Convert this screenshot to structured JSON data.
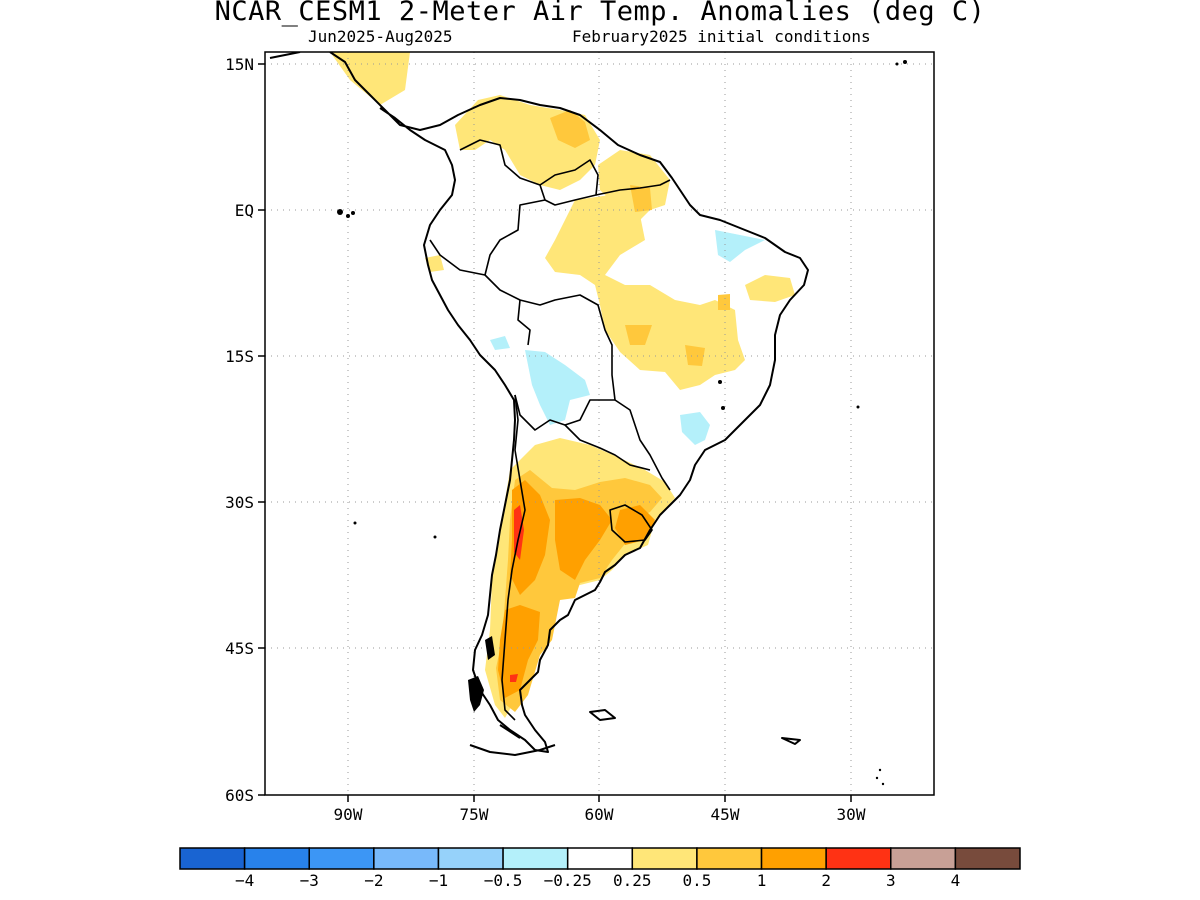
{
  "title": "NCAR_CESM1 2-Meter Air Temp. Anomalies (deg C)",
  "subtitle_left": "Jun2025-Aug2025",
  "subtitle_right": "February2025 initial conditions",
  "lat_labels": [
    "15N",
    "EQ",
    "15S",
    "30S",
    "45S",
    "60S"
  ],
  "lon_labels": [
    "90W",
    "75W",
    "60W",
    "45W",
    "30W"
  ],
  "colorbar": {
    "colors": [
      "#1964d2",
      "#2882eb",
      "#3c96f5",
      "#78b9fa",
      "#96d2fa",
      "#b4f0fa",
      "#ffffff",
      "#ffe678",
      "#ffc83c",
      "#ffa000",
      "#ff3214",
      "#c8a096",
      "#784b3c"
    ],
    "labels": [
      "−4",
      "−3",
      "−2",
      "−1",
      "−0.5",
      "−0.25",
      "0.25",
      "0.5",
      "1",
      "2",
      "3",
      "4"
    ]
  },
  "colors": {
    "anomaly_0_5": "#ffe678",
    "anomaly_1": "#ffc83c",
    "anomaly_2": "#ffa000",
    "anomaly_3": "#ff3214",
    "anomaly_neg_0_5": "#b4f0fa"
  }
}
